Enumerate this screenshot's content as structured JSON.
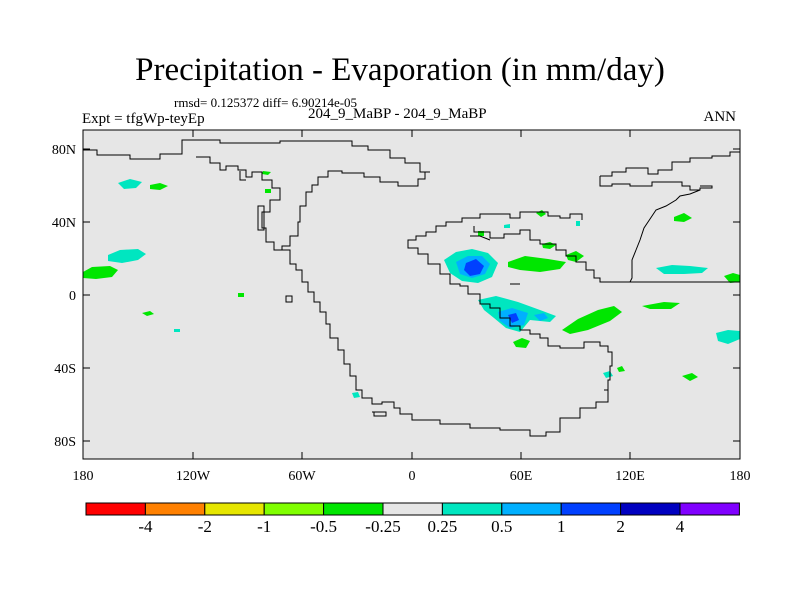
{
  "header": {
    "title": "Precipitation - Evaporation (in mm/day)",
    "stats": "rmsd= 0.125372 diff= 6.90214e-05",
    "expt": "Expt = tfgWp-teyEp",
    "cases": "204_9_MaBP - 204_9_MaBP",
    "season": "ANN"
  },
  "map": {
    "x_ticks": [
      "180",
      "120W",
      "60W",
      "0",
      "60E",
      "120E",
      "180"
    ],
    "y_ticks": [
      "80N",
      "40N",
      "0",
      "40S",
      "80S"
    ],
    "background_color": "#e6e6e6",
    "coastline_color": "#000000"
  },
  "colorbar": {
    "labels": [
      "-4",
      "-2",
      "-1",
      "-0.5",
      "-0.25",
      "0.25",
      "0.5",
      "1",
      "2",
      "4"
    ],
    "colors": [
      "#ff0000",
      "#ff8000",
      "#e6e600",
      "#80ff00",
      "#00e600",
      "#e6e6e6",
      "#00e6c0",
      "#00b0ff",
      "#0040ff",
      "#0000c0",
      "#8000ff"
    ]
  }
}
